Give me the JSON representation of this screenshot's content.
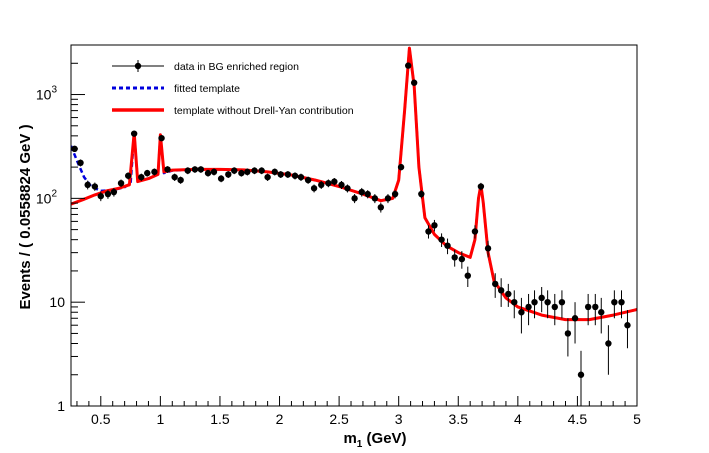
{
  "chart_data": {
    "type": "scatter",
    "title": "",
    "xlabel": "m",
    "xlabel_sub": "1",
    "xlabel_unit": " (GeV)",
    "ylabel": "Events / ( 0.0558824 GeV )",
    "xlim": [
      0.25,
      5.0
    ],
    "ylim": [
      1,
      3000
    ],
    "yscale": "log",
    "grid": false,
    "legend_position": "top-left",
    "x_ticks": [
      {
        "value": 0.5,
        "label": "0.5"
      },
      {
        "value": 1.0,
        "label": "1"
      },
      {
        "value": 1.5,
        "label": "1.5"
      },
      {
        "value": 2.0,
        "label": "2"
      },
      {
        "value": 2.5,
        "label": "2.5"
      },
      {
        "value": 3.0,
        "label": "3"
      },
      {
        "value": 3.5,
        "label": "3.5"
      },
      {
        "value": 4.0,
        "label": "4"
      },
      {
        "value": 4.5,
        "label": "4.5"
      },
      {
        "value": 5.0,
        "label": "5"
      }
    ],
    "y_ticks": [
      {
        "value": 1,
        "label": "1"
      },
      {
        "value": 10,
        "label": "10"
      },
      {
        "value": 100,
        "label": "10",
        "exp": "2"
      },
      {
        "value": 1000,
        "label": "10",
        "exp": "3"
      }
    ],
    "legend": [
      {
        "label": "data in BG enriched region",
        "style": "marker",
        "color": "#000000"
      },
      {
        "label": "fitted template",
        "style": "dashed",
        "color": "#0000dd"
      },
      {
        "label": "template without Drell-Yan contribution",
        "style": "solid",
        "color": "#ff0000"
      }
    ],
    "series": [
      {
        "name": "data in BG enriched region",
        "kind": "points",
        "color": "#000000",
        "points": [
          [
            0.28,
            300,
            20
          ],
          [
            0.33,
            220,
            17
          ],
          [
            0.39,
            135,
            13
          ],
          [
            0.45,
            130,
            12
          ],
          [
            0.5,
            105,
            11
          ],
          [
            0.56,
            110,
            11
          ],
          [
            0.61,
            115,
            11
          ],
          [
            0.67,
            140,
            12
          ],
          [
            0.73,
            165,
            13
          ],
          [
            0.78,
            420,
            21
          ],
          [
            0.84,
            160,
            13
          ],
          [
            0.89,
            175,
            13
          ],
          [
            0.95,
            180,
            14
          ],
          [
            1.01,
            380,
            20
          ],
          [
            1.06,
            190,
            14
          ],
          [
            1.12,
            160,
            13
          ],
          [
            1.17,
            150,
            12
          ],
          [
            1.23,
            185,
            14
          ],
          [
            1.29,
            190,
            14
          ],
          [
            1.34,
            190,
            14
          ],
          [
            1.4,
            175,
            13
          ],
          [
            1.45,
            180,
            14
          ],
          [
            1.51,
            155,
            12
          ],
          [
            1.57,
            170,
            13
          ],
          [
            1.62,
            185,
            14
          ],
          [
            1.68,
            175,
            13
          ],
          [
            1.73,
            180,
            14
          ],
          [
            1.79,
            185,
            14
          ],
          [
            1.85,
            185,
            14
          ],
          [
            1.9,
            160,
            13
          ],
          [
            1.96,
            180,
            14
          ],
          [
            2.01,
            170,
            13
          ],
          [
            2.07,
            170,
            13
          ],
          [
            2.13,
            165,
            13
          ],
          [
            2.18,
            160,
            13
          ],
          [
            2.24,
            150,
            12
          ],
          [
            2.29,
            125,
            11
          ],
          [
            2.35,
            135,
            12
          ],
          [
            2.41,
            140,
            12
          ],
          [
            2.46,
            145,
            12
          ],
          [
            2.52,
            135,
            12
          ],
          [
            2.57,
            125,
            11
          ],
          [
            2.63,
            100,
            10
          ],
          [
            2.69,
            115,
            11
          ],
          [
            2.74,
            110,
            10
          ],
          [
            2.8,
            100,
            10
          ],
          [
            2.85,
            82,
            9
          ],
          [
            2.91,
            100,
            10
          ],
          [
            2.97,
            110,
            10
          ],
          [
            3.02,
            200,
            14
          ],
          [
            3.08,
            1900,
            44
          ],
          [
            3.13,
            1300,
            36
          ],
          [
            3.19,
            110,
            10
          ],
          [
            3.25,
            48,
            7
          ],
          [
            3.3,
            55,
            7
          ],
          [
            3.36,
            40,
            6
          ],
          [
            3.41,
            35,
            6
          ],
          [
            3.47,
            27,
            5
          ],
          [
            3.53,
            26,
            5
          ],
          [
            3.58,
            18,
            4
          ],
          [
            3.64,
            48,
            7
          ],
          [
            3.69,
            130,
            11
          ],
          [
            3.75,
            33,
            6
          ],
          [
            3.81,
            15,
            4
          ],
          [
            3.86,
            13,
            4
          ],
          [
            3.92,
            12,
            3
          ],
          [
            3.97,
            10,
            3
          ],
          [
            4.03,
            8,
            3
          ],
          [
            4.09,
            9,
            3
          ],
          [
            4.14,
            10,
            3
          ],
          [
            4.2,
            11,
            3
          ],
          [
            4.25,
            10,
            3
          ],
          [
            4.31,
            9,
            3
          ],
          [
            4.37,
            10,
            3
          ],
          [
            4.42,
            5,
            2
          ],
          [
            4.48,
            7,
            3
          ],
          [
            4.53,
            2,
            1.4
          ],
          [
            4.59,
            9,
            3
          ],
          [
            4.65,
            9,
            3
          ],
          [
            4.7,
            8,
            3
          ],
          [
            4.76,
            4,
            2
          ],
          [
            4.81,
            10,
            3
          ],
          [
            4.87,
            10,
            3
          ],
          [
            4.92,
            6,
            2.4
          ]
        ]
      },
      {
        "name": "fitted template",
        "kind": "line",
        "dash": "dashed",
        "color": "#0000dd",
        "points": [
          [
            0.25,
            320
          ],
          [
            0.3,
            230
          ],
          [
            0.36,
            160
          ],
          [
            0.42,
            130
          ],
          [
            0.5,
            118
          ],
          [
            0.6,
            120
          ],
          [
            0.7,
            128
          ],
          [
            0.75,
            140
          ],
          [
            0.78,
            420
          ],
          [
            0.81,
            150
          ],
          [
            0.9,
            155
          ],
          [
            0.98,
            170
          ],
          [
            1.0,
            410
          ],
          [
            1.03,
            175
          ],
          [
            1.1,
            185
          ],
          [
            1.3,
            190
          ],
          [
            1.5,
            190
          ],
          [
            1.7,
            188
          ],
          [
            1.9,
            180
          ],
          [
            2.1,
            168
          ],
          [
            2.3,
            150
          ],
          [
            2.5,
            130
          ],
          [
            2.7,
            110
          ],
          [
            2.85,
            95
          ],
          [
            2.95,
            100
          ],
          [
            3.0,
            150
          ],
          [
            3.05,
            700
          ],
          [
            3.09,
            2800
          ],
          [
            3.13,
            1200
          ],
          [
            3.17,
            200
          ],
          [
            3.22,
            65
          ],
          [
            3.3,
            45
          ],
          [
            3.4,
            35
          ],
          [
            3.5,
            30
          ],
          [
            3.6,
            27
          ],
          [
            3.64,
            40
          ],
          [
            3.67,
            100
          ],
          [
            3.69,
            135
          ],
          [
            3.71,
            90
          ],
          [
            3.75,
            30
          ],
          [
            3.8,
            16
          ],
          [
            3.9,
            11
          ],
          [
            4.0,
            9
          ],
          [
            4.2,
            7.5
          ],
          [
            4.4,
            6.8
          ],
          [
            4.6,
            6.8
          ],
          [
            4.8,
            7.5
          ],
          [
            5.0,
            8.5
          ]
        ]
      },
      {
        "name": "template without Drell-Yan contribution",
        "kind": "line",
        "dash": "solid",
        "color": "#ff0000",
        "points": [
          [
            0.25,
            88
          ],
          [
            0.35,
            97
          ],
          [
            0.45,
            108
          ],
          [
            0.55,
            118
          ],
          [
            0.65,
            125
          ],
          [
            0.74,
            135
          ],
          [
            0.78,
            430
          ],
          [
            0.81,
            145
          ],
          [
            0.9,
            155
          ],
          [
            0.98,
            170
          ],
          [
            1.0,
            410
          ],
          [
            1.03,
            180
          ],
          [
            1.1,
            187
          ],
          [
            1.3,
            190
          ],
          [
            1.5,
            190
          ],
          [
            1.7,
            188
          ],
          [
            1.9,
            180
          ],
          [
            2.1,
            168
          ],
          [
            2.3,
            150
          ],
          [
            2.5,
            130
          ],
          [
            2.7,
            110
          ],
          [
            2.85,
            95
          ],
          [
            2.95,
            100
          ],
          [
            3.0,
            150
          ],
          [
            3.05,
            700
          ],
          [
            3.09,
            2800
          ],
          [
            3.13,
            1200
          ],
          [
            3.17,
            200
          ],
          [
            3.22,
            65
          ],
          [
            3.3,
            45
          ],
          [
            3.4,
            35
          ],
          [
            3.5,
            30
          ],
          [
            3.6,
            27
          ],
          [
            3.64,
            40
          ],
          [
            3.67,
            100
          ],
          [
            3.69,
            135
          ],
          [
            3.71,
            90
          ],
          [
            3.75,
            30
          ],
          [
            3.8,
            16
          ],
          [
            3.9,
            11
          ],
          [
            4.0,
            9
          ],
          [
            4.2,
            7.5
          ],
          [
            4.4,
            6.8
          ],
          [
            4.6,
            6.8
          ],
          [
            4.8,
            7.5
          ],
          [
            5.0,
            8.5
          ]
        ]
      }
    ]
  }
}
